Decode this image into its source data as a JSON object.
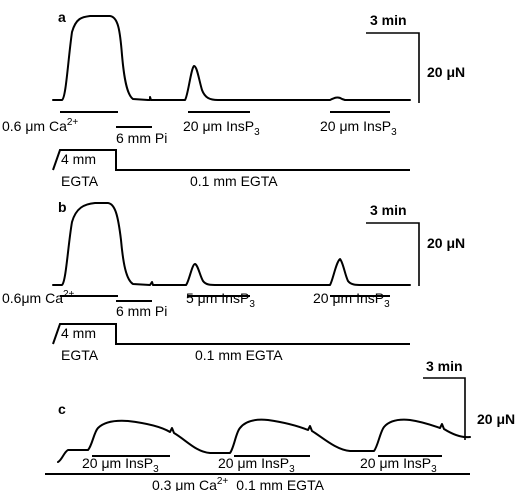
{
  "panels": [
    {
      "letter": "a",
      "scale_time": "3 min",
      "scale_force": "20 μN",
      "treatments": [
        "0.6 μm Ca",
        "6 mm Pi",
        "20 μm InsP",
        "20 μm InsP"
      ],
      "superscript": "2+",
      "subscript": "3",
      "buffer_low": "4 mm",
      "buffer_low_2": "EGTA",
      "buffer_main": "0.1 mm EGTA"
    },
    {
      "letter": "b",
      "scale_time": "3 min",
      "scale_force": "20 μN",
      "treatments": [
        "0.6μm Ca",
        "6 mm Pi",
        "5 μm InsP",
        "20 μm InsP"
      ],
      "superscript": "2+",
      "subscript": "3",
      "buffer_low": "4 mm",
      "buffer_low_2": "EGTA",
      "buffer_main": "0.1 mm EGTA"
    },
    {
      "letter": "c",
      "scale_time": "3 min",
      "scale_force": "20 μN",
      "treatments": [
        "20 μm InsP",
        "20 μm InsP",
        "20 μm InsP"
      ],
      "subscript": "3",
      "bottom_left": "0.3 μm Ca",
      "superscript": "2+",
      "bottom_right": "0.1 mm EGTA"
    }
  ]
}
